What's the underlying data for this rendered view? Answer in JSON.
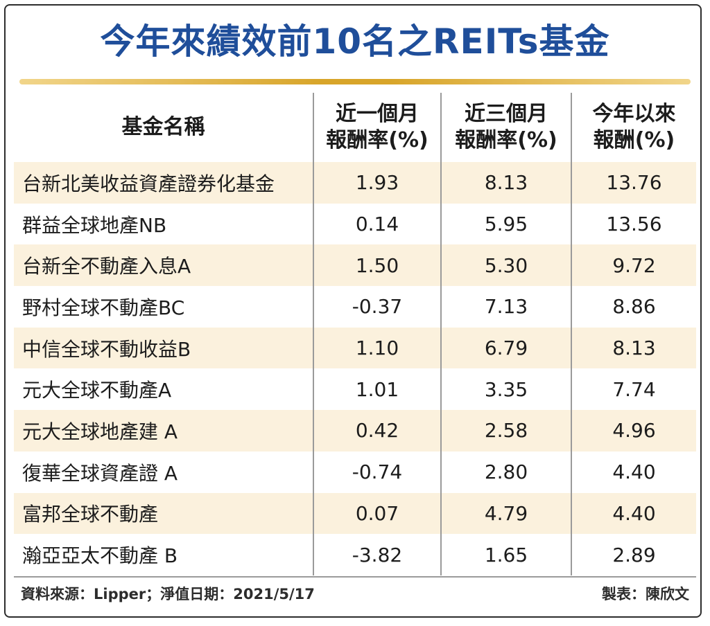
{
  "title": "今年來績效前10名之REITs基金",
  "columns": [
    {
      "line1": "基金名稱",
      "line2": ""
    },
    {
      "line1": "近一個月",
      "line2": "報酬率(%)"
    },
    {
      "line1": "近三個月",
      "line2": "報酬率(%)"
    },
    {
      "line1": "今年以來",
      "line2": "報酬(%)"
    }
  ],
  "rows": [
    {
      "name": "台新北美收益資產證券化基金",
      "m1": "1.93",
      "m3": "8.13",
      "ytd": "13.76"
    },
    {
      "name": "群益全球地產NB",
      "m1": "0.14",
      "m3": "5.95",
      "ytd": "13.56"
    },
    {
      "name": "台新全不動產入息A",
      "m1": "1.50",
      "m3": "5.30",
      "ytd": "9.72"
    },
    {
      "name": "野村全球不動產BC",
      "m1": "-0.37",
      "m3": "7.13",
      "ytd": "8.86"
    },
    {
      "name": "中信全球不動收益B",
      "m1": "1.10",
      "m3": "6.79",
      "ytd": "8.13"
    },
    {
      "name": "元大全球不動產A",
      "m1": "1.01",
      "m3": "3.35",
      "ytd": "7.74"
    },
    {
      "name": "元大全球地產建 A",
      "m1": "0.42",
      "m3": "2.58",
      "ytd": "4.96"
    },
    {
      "name": "復華全球資產證 A",
      "m1": "-0.74",
      "m3": "2.80",
      "ytd": "4.40"
    },
    {
      "name": "富邦全球不動產",
      "m1": "0.07",
      "m3": "4.79",
      "ytd": "4.40"
    },
    {
      "name": "瀚亞亞太不動產 B",
      "m1": "-3.82",
      "m3": "1.65",
      "ytd": "2.89"
    }
  ],
  "source": "資料來源：Lipper；淨值日期：2021/5/17",
  "maker": "製表：陳欣文",
  "colors": {
    "title": "#1f4e9a",
    "rule": "#d8a52a",
    "stripe": "#fbf1dd"
  },
  "chart_data": {
    "type": "table",
    "title": "今年來績效前10名之REITs基金",
    "headers": [
      "基金名稱",
      "近一個月報酬率(%)",
      "近三個月報酬率(%)",
      "今年以來報酬(%)"
    ],
    "rows": [
      [
        "台新北美收益資產證券化基金",
        1.93,
        8.13,
        13.76
      ],
      [
        "群益全球地產NB",
        0.14,
        5.95,
        13.56
      ],
      [
        "台新全不動產入息A",
        1.5,
        5.3,
        9.72
      ],
      [
        "野村全球不動產BC",
        -0.37,
        7.13,
        8.86
      ],
      [
        "中信全球不動收益B",
        1.1,
        6.79,
        8.13
      ],
      [
        "元大全球不動產A",
        1.01,
        3.35,
        7.74
      ],
      [
        "元大全球地產建 A",
        0.42,
        2.58,
        4.96
      ],
      [
        "復華全球資產證 A",
        -0.74,
        2.8,
        4.4
      ],
      [
        "富邦全球不動產",
        0.07,
        4.79,
        4.4
      ],
      [
        "瀚亞亞太不動產 B",
        -3.82,
        1.65,
        2.89
      ]
    ]
  }
}
